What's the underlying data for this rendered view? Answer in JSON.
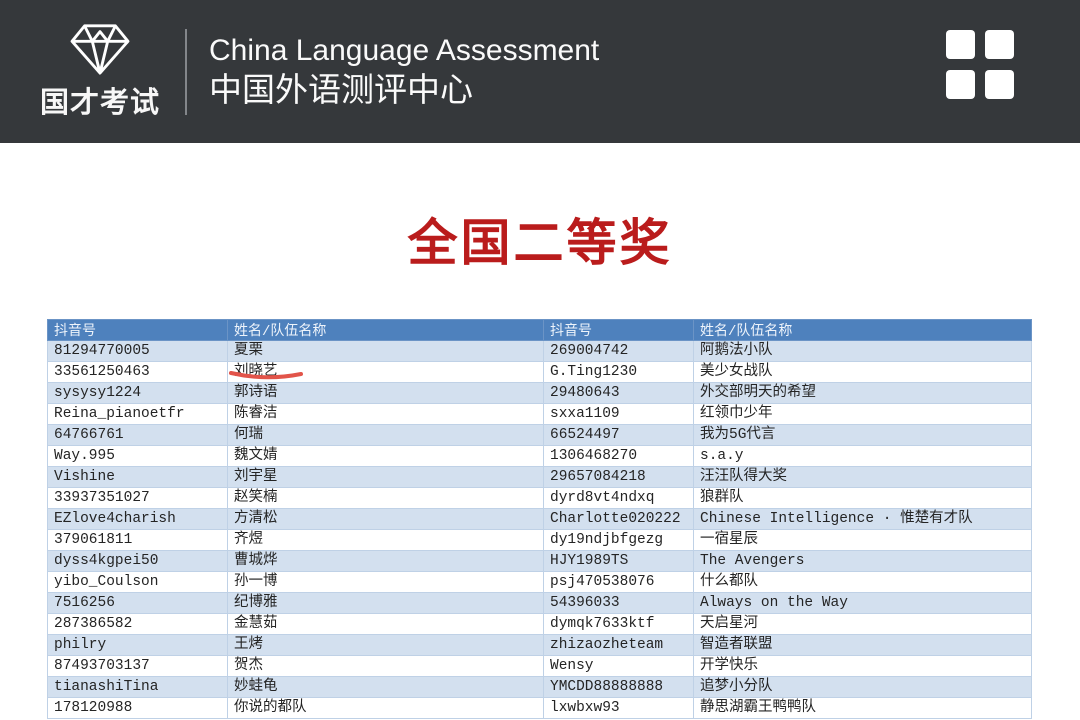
{
  "header": {
    "logo_text": "国才考试",
    "title_en": "China Language Assessment",
    "title_zh": "中国外语测评中心",
    "menu_icon": "grid-4-squares"
  },
  "page": {
    "award_title": "全国二等奖"
  },
  "table": {
    "columns": [
      "抖音号",
      "姓名/队伍名称",
      "抖音号",
      "姓名/队伍名称"
    ],
    "rows": [
      [
        "81294770005",
        "夏栗",
        "269004742",
        "阿鹅法小队"
      ],
      [
        "33561250463",
        "刘晓艺",
        "G.Ting1230",
        "美少女战队"
      ],
      [
        "sysysy1224",
        "郭诗语",
        "29480643",
        "外交部明天的希望"
      ],
      [
        "Reina_pianoetfr",
        "陈睿洁",
        "sxxa1109",
        "红领巾少年"
      ],
      [
        "64766761",
        "何瑞",
        "66524497",
        "我为5G代言"
      ],
      [
        "Way.995",
        "魏文婧",
        "1306468270",
        "s.a.y"
      ],
      [
        "Vishine",
        "刘宇星",
        "29657084218",
        "汪汪队得大奖"
      ],
      [
        "33937351027",
        "赵笑楠",
        "dyrd8vt4ndxq",
        "狼群队"
      ],
      [
        "EZlove4charish",
        "方清松",
        "Charlotte020222",
        "Chinese Intelligence · 惟楚有才队"
      ],
      [
        "379061811",
        "齐煜",
        "dy19ndjbfgezg",
        "一宿星辰"
      ],
      [
        "dyss4kgpei50",
        "曹城烨",
        "HJY1989TS",
        "The Avengers"
      ],
      [
        "yibo_Coulson",
        "孙一博",
        "psj470538076",
        "什么都队"
      ],
      [
        "7516256",
        "纪博雅",
        "54396033",
        "Always on the Way"
      ],
      [
        "287386582",
        "金慧茹",
        "dymqk7633ktf",
        "天启星河"
      ],
      [
        "philry",
        "王烤",
        "zhizaozheteam",
        "智造者联盟"
      ],
      [
        "87493703137",
        "贺杰",
        "Wensy",
        "开学快乐"
      ],
      [
        "tianashiTina",
        "妙蛙龟",
        "YMCDD88888888",
        "追梦小分队"
      ],
      [
        "178120988",
        "你说的都队",
        "lxwbxw93",
        "静思湖霸王鸭鸭队"
      ]
    ]
  },
  "annotation": {
    "type": "red-underline",
    "target_text": "刘晓艺",
    "row_index": 1,
    "col_index": 1,
    "color": "#e2544a"
  },
  "colors": {
    "header_bg": "#35383b",
    "award_title": "#ba1c1c",
    "table_header_bg": "#4e81bd",
    "table_band_row": "#d3e0ef",
    "table_border": "#bfd1e6"
  }
}
